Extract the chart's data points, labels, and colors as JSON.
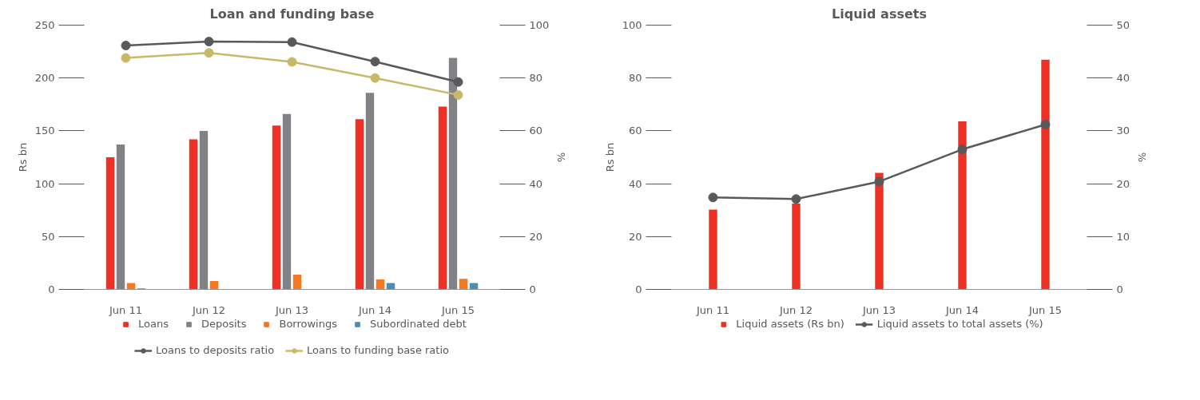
{
  "chart_data": [
    {
      "type": "bar",
      "title": "Loan and funding base",
      "ylabel": "Rs bn",
      "y2label": "%",
      "categories": [
        "Jun 11",
        "Jun 12",
        "Jun 13",
        "Jun 14",
        "Jun 15"
      ],
      "series": [
        {
          "name": "Loans",
          "color": "#ee3124",
          "values": [
            125,
            142,
            155,
            161,
            173
          ]
        },
        {
          "name": "Deposits",
          "color": "#808285",
          "values": [
            137,
            150,
            166,
            186,
            219
          ]
        },
        {
          "name": "Borrowings",
          "color": "#f47920",
          "values": [
            6,
            8,
            14,
            9.5,
            10
          ]
        },
        {
          "name": "Subordinated debt",
          "color": "#4f8db5",
          "values": [
            1,
            null,
            null,
            6,
            6
          ]
        },
        {
          "type": "line",
          "axis": "y2",
          "name": "Loans to deposits ratio",
          "color": "#58595b",
          "values": [
            92.3,
            93.8,
            93.6,
            86.2,
            78.5
          ]
        },
        {
          "type": "line",
          "axis": "y2",
          "name": "Loans to funding base ratio",
          "color": "#c8b96a",
          "values": [
            87.6,
            89.5,
            86.1,
            80.0,
            73.6
          ]
        }
      ],
      "ylim": [
        0,
        250
      ],
      "yticks": [
        0,
        50,
        100,
        150,
        200,
        250
      ],
      "y2lim": [
        0,
        100
      ],
      "y2ticks": [
        0,
        20,
        40,
        60,
        80,
        100
      ],
      "grid": false,
      "legend": "bottom",
      "marker": "circle",
      "line_style": "solid"
    },
    {
      "type": "bar",
      "title": "Liquid assets",
      "ylabel": "Rs bn",
      "y2label": "%",
      "categories": [
        "Jun 11",
        "Jun 12",
        "Jun 13",
        "Jun 14",
        "Jun 15"
      ],
      "series": [
        {
          "name": "Liquid assets (Rs bn)",
          "color": "#ee3124",
          "values": [
            30.2,
            32.5,
            44.1,
            63.6,
            86.9
          ]
        },
        {
          "type": "line",
          "axis": "y2",
          "name": "Liquid assets to total assets (%)",
          "color": "#58595b",
          "values": [
            17.4,
            17.1,
            20.4,
            26.5,
            31.2
          ]
        }
      ],
      "ylim": [
        0,
        100
      ],
      "yticks": [
        0,
        20,
        40,
        60,
        80,
        100
      ],
      "y2lim": [
        0,
        50
      ],
      "y2ticks": [
        0,
        10,
        20,
        30,
        40,
        50
      ],
      "grid": false,
      "legend": "bottom",
      "marker": "circle",
      "line_style": "solid"
    }
  ]
}
